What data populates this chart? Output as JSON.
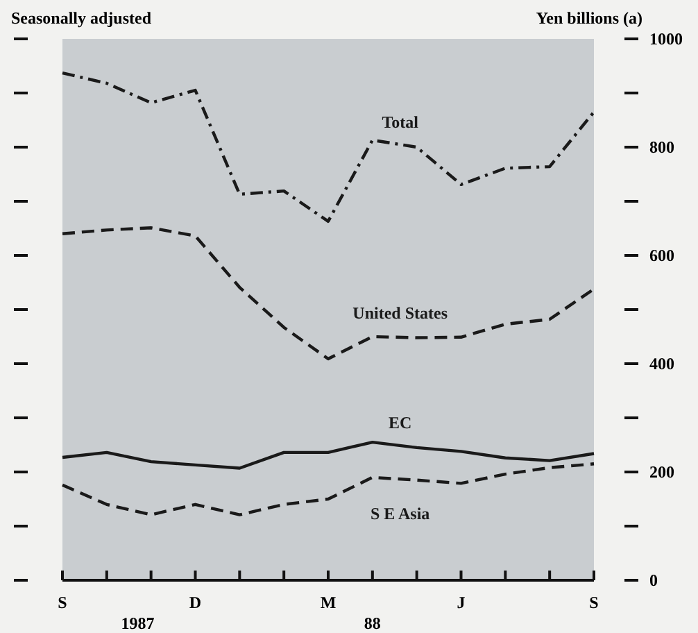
{
  "chart_data": {
    "type": "line",
    "subtitle": "Seasonally adjusted",
    "ylabel": "Yen billions (a)",
    "categories": [
      "S",
      null,
      null,
      "D",
      null,
      null,
      "M",
      null,
      null,
      "J",
      null,
      null,
      "S"
    ],
    "series": [
      {
        "name": "Total",
        "color": "#1a1a1a",
        "line_style": "dashdot",
        "values": [
          937,
          918,
          882,
          905,
          713,
          719,
          663,
          813,
          800,
          731,
          761,
          764,
          865
        ]
      },
      {
        "name": "United States",
        "color": "#1a1a1a",
        "line_style": "dashed",
        "values": [
          640,
          647,
          651,
          636,
          541,
          467,
          409,
          450,
          448,
          449,
          473,
          482,
          538
        ]
      },
      {
        "name": "EC",
        "color": "#1a1a1a",
        "line_style": "solid",
        "values": [
          227,
          236,
          219,
          213,
          207,
          236,
          236,
          255,
          245,
          238,
          226,
          221,
          234
        ]
      },
      {
        "name": "S E Asia",
        "color": "#1a1a1a",
        "line_style": "dashed",
        "values": [
          176,
          140,
          121,
          140,
          121,
          140,
          150,
          190,
          185,
          179,
          196,
          208,
          215
        ]
      }
    ],
    "ylim": [
      0,
      1000
    ],
    "yticks": [
      0,
      200,
      400,
      600,
      800,
      1000
    ],
    "annotations": [
      "1987",
      "88"
    ],
    "grid": false
  }
}
